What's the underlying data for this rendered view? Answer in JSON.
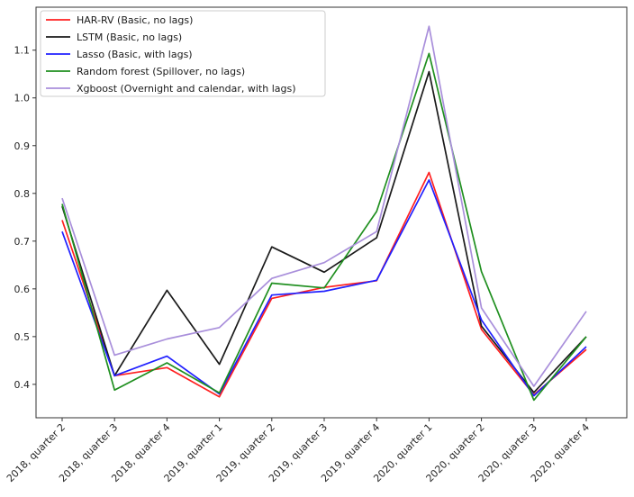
{
  "chart_data": {
    "type": "line",
    "title": "",
    "xlabel": "",
    "ylabel": "",
    "categories": [
      "2018, quarter 2",
      "2018, quarter 3",
      "2018, quarter 4",
      "2019, quarter 1",
      "2019, quarter 2",
      "2019, quarter 3",
      "2019, quarter 4",
      "2020, quarter 1",
      "2020, quarter 2",
      "2020, quarter 3",
      "2020, quarter 4"
    ],
    "ylim": [
      0.33,
      1.19
    ],
    "yticks": [
      0.4,
      0.5,
      0.6,
      0.7,
      0.8,
      0.9,
      1.0,
      1.1
    ],
    "ytick_labels": [
      "0.4",
      "0.5",
      "0.6",
      "0.7",
      "0.8",
      "0.9",
      "1.0",
      "1.1"
    ],
    "grid": false,
    "legend_position": "top-left",
    "series": [
      {
        "name": "HAR-RV (Basic, no lags)",
        "color": "#ff2020",
        "values": [
          0.744,
          0.418,
          0.435,
          0.374,
          0.58,
          0.603,
          0.617,
          0.844,
          0.515,
          0.378,
          0.473
        ]
      },
      {
        "name": "LSTM (Basic, no lags)",
        "color": "#1a1a1a",
        "values": [
          0.773,
          0.418,
          0.597,
          0.442,
          0.688,
          0.635,
          0.707,
          1.055,
          0.522,
          0.383,
          0.5
        ]
      },
      {
        "name": "Lasso (Basic, with lags)",
        "color": "#2020ff",
        "values": [
          0.72,
          0.418,
          0.459,
          0.38,
          0.587,
          0.595,
          0.618,
          0.828,
          0.535,
          0.376,
          0.479
        ]
      },
      {
        "name": "Random forest (Spillover, no lags)",
        "color": "#1f8f1f",
        "values": [
          0.778,
          0.388,
          0.445,
          0.382,
          0.612,
          0.602,
          0.762,
          1.093,
          0.636,
          0.367,
          0.5
        ]
      },
      {
        "name": "Xgboost (Overnight and calendar, with lags)",
        "color": "#a98fdb",
        "values": [
          0.79,
          0.461,
          0.495,
          0.519,
          0.622,
          0.655,
          0.72,
          1.15,
          0.56,
          0.396,
          0.553
        ]
      }
    ]
  }
}
